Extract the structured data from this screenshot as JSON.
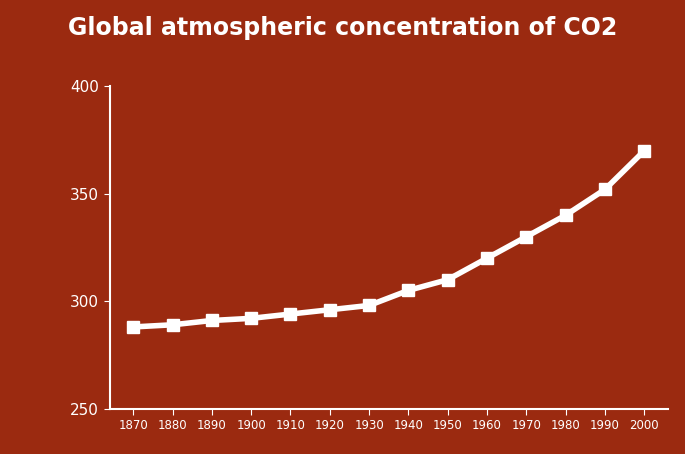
{
  "chart_data": {
    "type": "line",
    "title": "Global atmospheric concentration of CO2",
    "x": [
      1870,
      1880,
      1890,
      1900,
      1910,
      1920,
      1930,
      1940,
      1950,
      1960,
      1970,
      1980,
      1990,
      2000
    ],
    "values": [
      288,
      289,
      291,
      292,
      294,
      296,
      298,
      305,
      310,
      320,
      330,
      340,
      352,
      370
    ],
    "color": "#ffffff",
    "marker": "square",
    "line_style": "solid",
    "xlim": [
      1864,
      2006
    ],
    "xticks": [
      1870,
      1880,
      1890,
      1900,
      1910,
      1920,
      1930,
      1940,
      1950,
      1960,
      1970,
      1980,
      1990,
      2000
    ],
    "ylim": [
      250,
      400
    ],
    "yticks": [
      250,
      300,
      350,
      400
    ],
    "grid": false
  }
}
